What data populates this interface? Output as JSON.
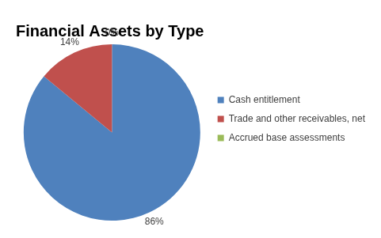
{
  "chart_data": {
    "type": "pie",
    "title": "Financial Assets by Type",
    "categories": [
      "Cash entitlement",
      "Trade and other receivables, net",
      "Accrued base assessments"
    ],
    "values": [
      86,
      14,
      0
    ],
    "value_labels": [
      "86%",
      "14%",
      "0%"
    ],
    "colors": [
      "#4f81bd",
      "#c0504d",
      "#9bbb59"
    ],
    "legend": "right",
    "data_labels": true
  }
}
